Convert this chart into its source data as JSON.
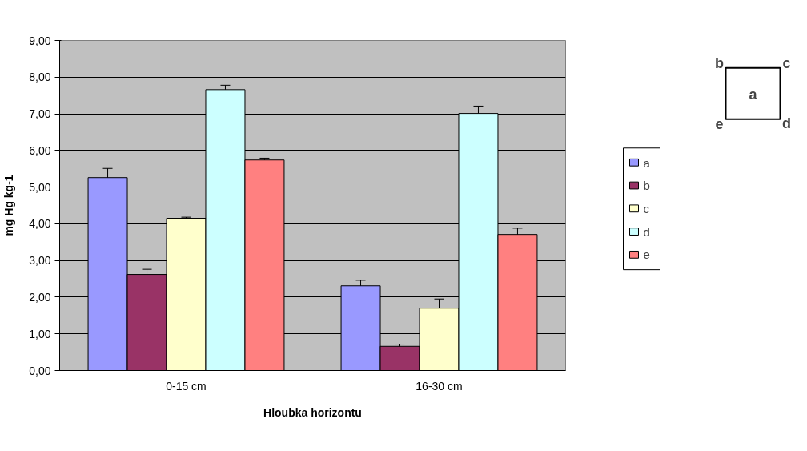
{
  "chart_data": {
    "type": "bar",
    "xlabel": "Hloubka horizontu",
    "ylabel": "mg Hg kg-1",
    "categories": [
      "0-15 cm",
      "16-30 cm"
    ],
    "series": [
      {
        "name": "a",
        "color": "#9999ff",
        "values": [
          5.26,
          2.31
        ],
        "errors": [
          0.25,
          0.15
        ]
      },
      {
        "name": "b",
        "color": "#993366",
        "values": [
          2.62,
          0.66
        ],
        "errors": [
          0.14,
          0.06
        ]
      },
      {
        "name": "c",
        "color": "#ffffcc",
        "values": [
          4.15,
          1.7
        ],
        "errors": [
          0.03,
          0.25
        ]
      },
      {
        "name": "d",
        "color": "#ccffff",
        "values": [
          7.66,
          7.01
        ],
        "errors": [
          0.12,
          0.2
        ]
      },
      {
        "name": "e",
        "color": "#ff8080",
        "values": [
          5.74,
          3.71
        ],
        "errors": [
          0.05,
          0.17
        ]
      }
    ],
    "ylim": [
      0,
      9
    ],
    "yticks": [
      {
        "value": 0,
        "label": "0,00"
      },
      {
        "value": 1,
        "label": "1,00"
      },
      {
        "value": 2,
        "label": "2,00"
      },
      {
        "value": 3,
        "label": "3,00"
      },
      {
        "value": 4,
        "label": "4,00"
      },
      {
        "value": 5,
        "label": "5,00"
      },
      {
        "value": 6,
        "label": "6,00"
      },
      {
        "value": 7,
        "label": "7,00"
      },
      {
        "value": 8,
        "label": "8,00"
      },
      {
        "value": 9,
        "label": "9,00"
      }
    ],
    "grid": "y",
    "legend": "right",
    "annotations": [
      "a",
      "b",
      "c",
      "d",
      "e"
    ]
  }
}
